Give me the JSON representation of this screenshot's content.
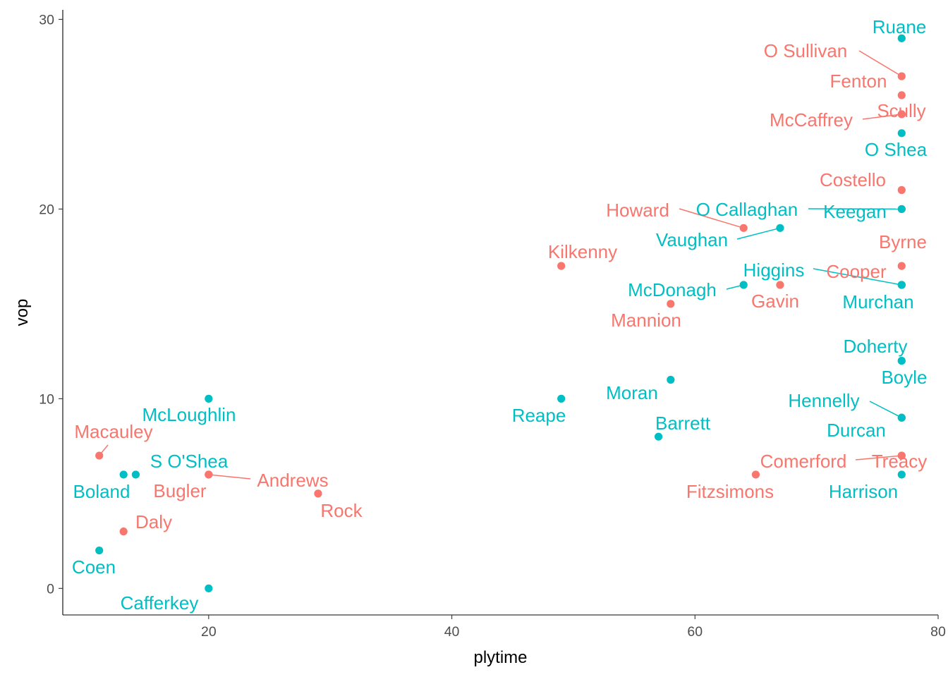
{
  "chart_data": {
    "type": "scatter",
    "xlabel": "plytime",
    "ylabel": "vop",
    "xlim": [
      8,
      80
    ],
    "ylim": [
      -1.4,
      30.5
    ],
    "xticks": [
      "20",
      "40",
      "60",
      "80"
    ],
    "yticks": [
      "0",
      "10",
      "20",
      "30"
    ],
    "grid": false,
    "legend": "none",
    "group_colors": {
      "a": "#F8766D",
      "b": "#00BFC4"
    },
    "points": [
      {
        "name": "Ruane",
        "x": 77,
        "y": 29,
        "group": "b"
      },
      {
        "name": "O Sullivan",
        "x": 77,
        "y": 27,
        "group": "a"
      },
      {
        "name": "Fenton",
        "x": 77,
        "y": 26,
        "group": "a"
      },
      {
        "name": "Scully",
        "x": 77,
        "y": 25,
        "group": "a"
      },
      {
        "name": "McCaffrey",
        "x": 77,
        "y": 25,
        "group": "a"
      },
      {
        "name": "O Shea",
        "x": 77,
        "y": 24,
        "group": "b"
      },
      {
        "name": "Costello",
        "x": 77,
        "y": 21,
        "group": "a"
      },
      {
        "name": "Keegan",
        "x": 77,
        "y": 20,
        "group": "b"
      },
      {
        "name": "O Callaghan",
        "x": 77,
        "y": 20,
        "group": "b"
      },
      {
        "name": "Byrne",
        "x": 77,
        "y": 17,
        "group": "a"
      },
      {
        "name": "Cooper",
        "x": 77,
        "y": 16,
        "group": "a"
      },
      {
        "name": "Murchan",
        "x": 77,
        "y": 16,
        "group": "b"
      },
      {
        "name": "Higgins",
        "x": 77,
        "y": 16,
        "group": "b"
      },
      {
        "name": "Doherty",
        "x": 77,
        "y": 12,
        "group": "b"
      },
      {
        "name": "Boyle",
        "x": 77,
        "y": 12,
        "group": "b"
      },
      {
        "name": "Hennelly",
        "x": 77,
        "y": 9,
        "group": "b"
      },
      {
        "name": "Durcan",
        "x": 77,
        "y": 9,
        "group": "b"
      },
      {
        "name": "Treacy",
        "x": 77,
        "y": 7,
        "group": "a"
      },
      {
        "name": "Comerford",
        "x": 77,
        "y": 7,
        "group": "a"
      },
      {
        "name": "Harrison",
        "x": 77,
        "y": 6,
        "group": "b"
      },
      {
        "name": "Howard",
        "x": 64,
        "y": 19,
        "group": "a"
      },
      {
        "name": "Vaughan",
        "x": 67,
        "y": 19,
        "group": "b"
      },
      {
        "name": "McDonagh",
        "x": 64,
        "y": 16,
        "group": "b"
      },
      {
        "name": "Gavin",
        "x": 67,
        "y": 16,
        "group": "a"
      },
      {
        "name": "Mannion",
        "x": 58,
        "y": 15,
        "group": "a"
      },
      {
        "name": "Kilkenny",
        "x": 49,
        "y": 17,
        "group": "a"
      },
      {
        "name": "Moran",
        "x": 58,
        "y": 11,
        "group": "b"
      },
      {
        "name": "Barrett",
        "x": 57,
        "y": 8,
        "group": "b"
      },
      {
        "name": "Reape",
        "x": 49,
        "y": 10,
        "group": "b"
      },
      {
        "name": "Fitzsimons",
        "x": 65,
        "y": 6,
        "group": "a"
      },
      {
        "name": "McLoughlin",
        "x": 20,
        "y": 10,
        "group": "b"
      },
      {
        "name": "Macauley",
        "x": 11,
        "y": 7,
        "group": "a"
      },
      {
        "name": "S O'Shea",
        "x": 14,
        "y": 6,
        "group": "b"
      },
      {
        "name": "Boland",
        "x": 13,
        "y": 6,
        "group": "b"
      },
      {
        "name": "Bugler",
        "x": 20,
        "y": 6,
        "group": "a"
      },
      {
        "name": "Andrews",
        "x": 20,
        "y": 6,
        "group": "a"
      },
      {
        "name": "Rock",
        "x": 29,
        "y": 5,
        "group": "a"
      },
      {
        "name": "Daly",
        "x": 13,
        "y": 3,
        "group": "a"
      },
      {
        "name": "Coen",
        "x": 11,
        "y": 2,
        "group": "b"
      },
      {
        "name": "Cafferkey",
        "x": 20,
        "y": 0,
        "group": "b"
      }
    ]
  }
}
